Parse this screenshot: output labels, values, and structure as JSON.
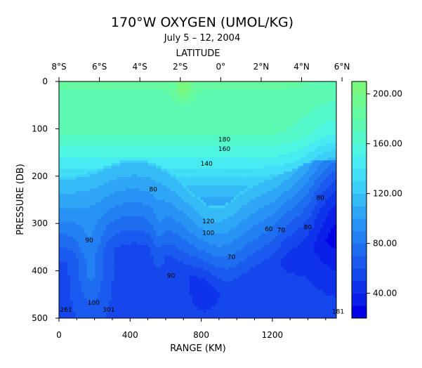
{
  "chart_data": {
    "type": "contour",
    "title": "170°W OXYGEN (UMOL/KG)",
    "subtitle": "July 5 – 12, 2004",
    "top_axis": {
      "label": "LATITUDE",
      "ticks": [
        "8°S",
        "6°S",
        "4°S",
        "2°S",
        "0°",
        "2°N",
        "4°N",
        "6°N"
      ],
      "tick_range_km": [
        0,
        1592
      ]
    },
    "xaxis": {
      "label": "RANGE (KM)",
      "range": [
        0,
        1560
      ],
      "ticks": [
        0,
        400,
        800,
        1200
      ]
    },
    "yaxis": {
      "label": "PRESSURE (DB)",
      "range": [
        0,
        500
      ],
      "inverted": true,
      "ticks": [
        0,
        100,
        200,
        300,
        400,
        500
      ]
    },
    "colorbar": {
      "range": [
        20,
        210
      ],
      "tick_labels": [
        "200.00",
        "160.00",
        "120.00",
        "80.00",
        "40.00"
      ],
      "tick_values": [
        200,
        160,
        120,
        80,
        40
      ],
      "levels": [
        20,
        30,
        40,
        50,
        60,
        70,
        80,
        90,
        100,
        110,
        120,
        130,
        140,
        150,
        160,
        170,
        180,
        190,
        200,
        210
      ],
      "colors": [
        "#0000e6",
        "#0a1fe8",
        "#0f33ea",
        "#1447ec",
        "#1a5aee",
        "#1e6cf0",
        "#2380f2",
        "#2892f4",
        "#2ea6f5",
        "#35baf6",
        "#3ccff8",
        "#42def7",
        "#47ebf1",
        "#4ef5e0",
        "#55f8c8",
        "#5df9b3",
        "#65f9a0",
        "#6ef88e",
        "#78f77e"
      ]
    },
    "contour_labels": [
      {
        "text": "180",
        "x": 930,
        "p": 127
      },
      {
        "text": "160",
        "x": 930,
        "p": 147
      },
      {
        "text": "140",
        "x": 830,
        "p": 178
      },
      {
        "text": "120",
        "x": 840,
        "p": 300
      },
      {
        "text": "100",
        "x": 840,
        "p": 324
      },
      {
        "text": "80",
        "x": 530,
        "p": 232
      },
      {
        "text": "80",
        "x": 1470,
        "p": 250
      },
      {
        "text": "80",
        "x": 1400,
        "p": 312
      },
      {
        "text": "60",
        "x": 1180,
        "p": 316
      },
      {
        "text": "70",
        "x": 1250,
        "p": 318
      },
      {
        "text": "90",
        "x": 170,
        "p": 340
      },
      {
        "text": "70",
        "x": 970,
        "p": 375
      },
      {
        "text": "90",
        "x": 630,
        "p": 415
      },
      {
        "text": "100",
        "x": 195,
        "p": 472
      },
      {
        "text": "261",
        "x": 40,
        "p": 487
      },
      {
        "text": "301",
        "x": 280,
        "p": 487
      },
      {
        "text": "181",
        "x": 1570,
        "p": 490
      }
    ]
  }
}
